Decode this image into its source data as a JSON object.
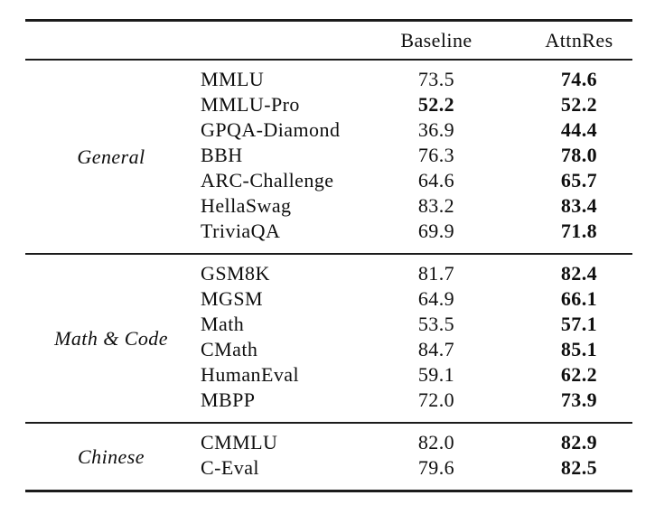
{
  "table": {
    "header": {
      "baseline": "Baseline",
      "attnres": "AttnRes"
    },
    "groups": [
      {
        "label": "General",
        "rows": [
          {
            "name": "MMLU",
            "baseline": "73.5",
            "attnres": "74.6"
          },
          {
            "name": "MMLU-Pro",
            "baseline": "52.2",
            "attnres": "52.2",
            "baseline_bold": true
          },
          {
            "name": "GPQA-Diamond",
            "baseline": "36.9",
            "attnres": "44.4"
          },
          {
            "name": "BBH",
            "baseline": "76.3",
            "attnres": "78.0"
          },
          {
            "name": "ARC-Challenge",
            "baseline": "64.6",
            "attnres": "65.7"
          },
          {
            "name": "HellaSwag",
            "baseline": "83.2",
            "attnres": "83.4"
          },
          {
            "name": "TriviaQA",
            "baseline": "69.9",
            "attnres": "71.8"
          }
        ]
      },
      {
        "label": "Math & Code",
        "rows": [
          {
            "name": "GSM8K",
            "baseline": "81.7",
            "attnres": "82.4"
          },
          {
            "name": "MGSM",
            "baseline": "64.9",
            "attnres": "66.1"
          },
          {
            "name": "Math",
            "baseline": "53.5",
            "attnres": "57.1"
          },
          {
            "name": "CMath",
            "baseline": "84.7",
            "attnres": "85.1"
          },
          {
            "name": "HumanEval",
            "baseline": "59.1",
            "attnres": "62.2"
          },
          {
            "name": "MBPP",
            "baseline": "72.0",
            "attnres": "73.9"
          }
        ]
      },
      {
        "label": "Chinese",
        "rows": [
          {
            "name": "CMMLU",
            "baseline": "82.0",
            "attnres": "82.9"
          },
          {
            "name": "C-Eval",
            "baseline": "79.6",
            "attnres": "82.5"
          }
        ]
      }
    ]
  }
}
